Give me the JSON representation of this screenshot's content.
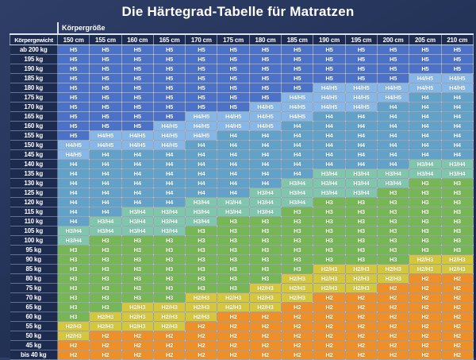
{
  "title": "Die Härtegrad-Tabelle für Matratzen",
  "axis_labels": {
    "column_axis": "Körpergröße",
    "row_axis": "Körpergewicht"
  },
  "chart_data": {
    "type": "heatmap",
    "title": "Die Härtegrad-Tabelle für Matratzen",
    "xlabel": "Körpergröße",
    "ylabel": "Körpergewicht",
    "legend_position": "none",
    "grid": true,
    "columns": [
      "150 cm",
      "155 cm",
      "160 cm",
      "165 cm",
      "170 cm",
      "175 cm",
      "180 cm",
      "185 cm",
      "190 cm",
      "195 cm",
      "200 cm",
      "205 cm",
      "210 cm"
    ],
    "rows": [
      "ab 200 kg",
      "195 kg",
      "190 kg",
      "185 kg",
      "180 kg",
      "175 kg",
      "170 kg",
      "165 kg",
      "160 kg",
      "155 kg",
      "150 kg",
      "145 kg",
      "140 kg",
      "135 kg",
      "130 kg",
      "125 kg",
      "120 kg",
      "115 kg",
      "110 kg",
      "105 kg",
      "100 kg",
      "95 kg",
      "90 kg",
      "85 kg",
      "80 kg",
      "75 kg",
      "70 kg",
      "65 kg",
      "60 kg",
      "55 kg",
      "50 kg",
      "45 kg",
      "bis 40 kg"
    ],
    "values": [
      [
        "H5",
        "H5",
        "H5",
        "H5",
        "H5",
        "H5",
        "H5",
        "H5",
        "H5",
        "H5",
        "H5",
        "H5",
        "H5"
      ],
      [
        "H5",
        "H5",
        "H5",
        "H5",
        "H5",
        "H5",
        "H5",
        "H5",
        "H5",
        "H5",
        "H5",
        "H5",
        "H5"
      ],
      [
        "H5",
        "H5",
        "H5",
        "H5",
        "H5",
        "H5",
        "H5",
        "H5",
        "H5",
        "H5",
        "H5",
        "H5",
        "H5"
      ],
      [
        "H5",
        "H5",
        "H5",
        "H5",
        "H5",
        "H5",
        "H5",
        "H5",
        "H5",
        "H5",
        "H5",
        "H4/H5",
        "H4/H5"
      ],
      [
        "H5",
        "H5",
        "H5",
        "H5",
        "H5",
        "H5",
        "H5",
        "H5",
        "H4/H5",
        "H4/H5",
        "H4/H5",
        "H4/H5",
        "H4/H5"
      ],
      [
        "H5",
        "H5",
        "H5",
        "H5",
        "H5",
        "H5",
        "H5",
        "H4/H5",
        "H4/H5",
        "H4/H5",
        "H4/H5",
        "H4",
        "H4"
      ],
      [
        "H5",
        "H5",
        "H5",
        "H5",
        "H5",
        "H5",
        "H4/H5",
        "H4/H5",
        "H4/H5",
        "H4/H5",
        "H4",
        "H4",
        "H4"
      ],
      [
        "H5",
        "H5",
        "H5",
        "H5",
        "H4/H5",
        "H4/H5",
        "H4/H5",
        "H4/H5",
        "H4",
        "H4",
        "H4",
        "H4",
        "H4"
      ],
      [
        "H5",
        "H5",
        "H5",
        "H4/H5",
        "H4/H5",
        "H4/H5",
        "H4/H5",
        "H4",
        "H4",
        "H4",
        "H4",
        "H4",
        "H4"
      ],
      [
        "H5",
        "H4/H5",
        "H4/H5",
        "H4/H5",
        "H4/H5",
        "H4",
        "H4",
        "H4",
        "H4",
        "H4",
        "H4",
        "H4",
        "H4"
      ],
      [
        "H4/H5",
        "H4/H5",
        "H4/H5",
        "H4/H5",
        "H4",
        "H4",
        "H4",
        "H4",
        "H4",
        "H4",
        "H4",
        "H4",
        "H4"
      ],
      [
        "H4/H5",
        "H4",
        "H4",
        "H4",
        "H4",
        "H4",
        "H4",
        "H4",
        "H4",
        "H4",
        "H4",
        "H4",
        "H4"
      ],
      [
        "H4",
        "H4",
        "H4",
        "H4",
        "H4",
        "H4",
        "H4",
        "H4",
        "H4",
        "H4",
        "H4",
        "H3/H4",
        "H3/H4"
      ],
      [
        "H4",
        "H4",
        "H4",
        "H4",
        "H4",
        "H4",
        "H4",
        "H4",
        "H3/H4",
        "H3/H4",
        "H3/H4",
        "H3/H4",
        "H3/H4"
      ],
      [
        "H4",
        "H4",
        "H4",
        "H4",
        "H4",
        "H4",
        "H4",
        "H3/H4",
        "H3/H4",
        "H3/H4",
        "H3/H4",
        "H3",
        "H3"
      ],
      [
        "H4",
        "H4",
        "H4",
        "H4",
        "H4",
        "H4",
        "H3/H4",
        "H3/H4",
        "H3/H4",
        "H3/H4",
        "H3",
        "H3",
        "H3"
      ],
      [
        "H4",
        "H4",
        "H4",
        "H4",
        "H3/H4",
        "H3/H4",
        "H3/H4",
        "H3/H4",
        "H3",
        "H3",
        "H3",
        "H3",
        "H3"
      ],
      [
        "H4",
        "H4",
        "H3/H4",
        "H3/H4",
        "H3/H4",
        "H3/H4",
        "H3/H4",
        "H3",
        "H3",
        "H3",
        "H3",
        "H3",
        "H3"
      ],
      [
        "H4",
        "H3/H4",
        "H3/H4",
        "H3/H4",
        "H3/H4",
        "H3",
        "H3",
        "H3",
        "H3",
        "H3",
        "H3",
        "H3",
        "H3"
      ],
      [
        "H3/H4",
        "H3/H4",
        "H3/H4",
        "H3/H4",
        "H3",
        "H3",
        "H3",
        "H3",
        "H3",
        "H3",
        "H3",
        "H3",
        "H3"
      ],
      [
        "H3/H4",
        "H3",
        "H3",
        "H3",
        "H3",
        "H3",
        "H3",
        "H3",
        "H3",
        "H3",
        "H3",
        "H3",
        "H3"
      ],
      [
        "H3",
        "H3",
        "H3",
        "H3",
        "H3",
        "H3",
        "H3",
        "H3",
        "H3",
        "H3",
        "H3",
        "H3",
        "H3"
      ],
      [
        "H3",
        "H3",
        "H3",
        "H3",
        "H3",
        "H3",
        "H3",
        "H3",
        "H3",
        "H3",
        "H3",
        "H2/H3",
        "H2/H3"
      ],
      [
        "H3",
        "H3",
        "H3",
        "H3",
        "H3",
        "H3",
        "H3",
        "H3",
        "H2/H3",
        "H2/H3",
        "H2/H3",
        "H2/H3",
        "H2/H3"
      ],
      [
        "H3",
        "H3",
        "H3",
        "H3",
        "H3",
        "H3",
        "H3",
        "H2/H3",
        "H2/H3",
        "H2/H3",
        "H2/H3",
        "H2",
        "H2"
      ],
      [
        "H3",
        "H3",
        "H3",
        "H3",
        "H3",
        "H3",
        "H2/H3",
        "H2/H3",
        "H2/H3",
        "H2/H3",
        "H2",
        "H2",
        "H2"
      ],
      [
        "H3",
        "H3",
        "H3",
        "H3",
        "H2/H3",
        "H2/H3",
        "H2/H3",
        "H2/H3",
        "H2",
        "H2",
        "H2",
        "H2",
        "H2"
      ],
      [
        "H3",
        "H3",
        "H2/H3",
        "H2/H3",
        "H2/H3",
        "H2/H3",
        "H2/H3",
        "H2",
        "H2",
        "H2",
        "H2",
        "H2",
        "H2"
      ],
      [
        "H3",
        "H2/H3",
        "H2/H3",
        "H2/H3",
        "H2/H3",
        "H2",
        "H2",
        "H2",
        "H2",
        "H2",
        "H2",
        "H2",
        "H2"
      ],
      [
        "H2/H3",
        "H2/H3",
        "H2/H3",
        "H2/H3",
        "H2",
        "H2",
        "H2",
        "H2",
        "H2",
        "H2",
        "H2",
        "H2",
        "H2"
      ],
      [
        "H2/H3",
        "H2",
        "H2",
        "H2",
        "H2",
        "H2",
        "H2",
        "H2",
        "H2",
        "H2",
        "H2",
        "H2",
        "H2"
      ],
      [
        "H2",
        "H2",
        "H2",
        "H2",
        "H2",
        "H2",
        "H2",
        "H2",
        "H2",
        "H2",
        "H2",
        "H2",
        "H2"
      ],
      [
        "H2",
        "H2",
        "H2",
        "H2",
        "H2",
        "H2",
        "H2",
        "H2",
        "H2",
        "H2",
        "H2",
        "H2",
        "H2"
      ]
    ],
    "value_colors": {
      "H5": "#4c72c7",
      "H4/H5": "#87b7e6",
      "H4": "#62a2c9",
      "H3/H4": "#7fc6ad",
      "H3": "#77b655",
      "H2/H3": "#d5c73c",
      "H2": "#ee8f28"
    },
    "header_background": "#1d2b4e",
    "page_background": "#243459"
  }
}
